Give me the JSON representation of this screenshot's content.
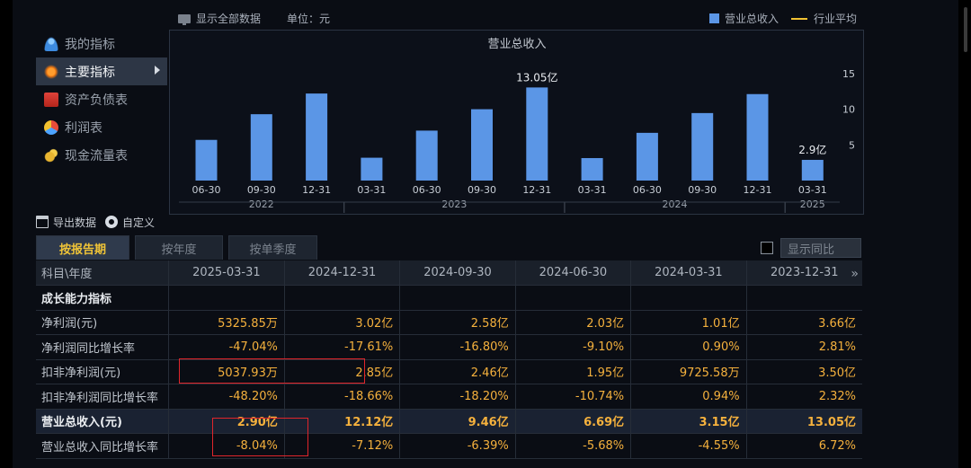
{
  "topbar": {
    "show_all": "显示全部数据",
    "unit": "单位：元",
    "legend_revenue": "营业总收入",
    "legend_industry": "行业平均",
    "colors": {
      "bar": "#5b96e6",
      "industry_line": "#f1c232"
    }
  },
  "sidebar": {
    "items": [
      {
        "label": "我的指标",
        "icon": "user-icon"
      },
      {
        "label": "主要指标",
        "icon": "gear-icon",
        "active": true
      },
      {
        "label": "资产负债表",
        "icon": "document-icon"
      },
      {
        "label": "利润表",
        "icon": "pie-icon"
      },
      {
        "label": "现金流量表",
        "icon": "coins-icon"
      }
    ]
  },
  "chart_data": {
    "type": "bar",
    "title": "营业总收入",
    "categories": [
      "06-30",
      "09-30",
      "12-31",
      "03-31",
      "06-30",
      "09-30",
      "12-31",
      "03-31",
      "06-30",
      "09-30",
      "12-31",
      "03-31"
    ],
    "year_groups": [
      {
        "label": "2022",
        "count": 3
      },
      {
        "label": "2023",
        "count": 4
      },
      {
        "label": "2024",
        "count": 4
      },
      {
        "label": "2025",
        "count": 1
      }
    ],
    "values": [
      5.7,
      9.3,
      12.2,
      3.2,
      7.0,
      10.0,
      13.05,
      3.15,
      6.69,
      9.46,
      12.12,
      2.9
    ],
    "data_labels": [
      {
        "index": 6,
        "text": "13.05亿"
      },
      {
        "index": 11,
        "text": "2.9亿"
      }
    ],
    "yticks": [
      "5",
      "10",
      "15"
    ],
    "ylim": [
      0,
      17
    ]
  },
  "tools": {
    "export": "导出数据",
    "customize": "自定义"
  },
  "tabs": [
    "按报告期",
    "按年度",
    "按单季度"
  ],
  "yoy": {
    "label": "显示同比"
  },
  "table": {
    "header": [
      "科目\\年度",
      "2025-03-31",
      "2024-12-31",
      "2024-09-30",
      "2024-06-30",
      "2024-03-31",
      "2023-12-31"
    ],
    "section": "成长能力指标",
    "rows": [
      {
        "label": "净利润(元)",
        "values": [
          "5325.85万",
          "3.02亿",
          "2.58亿",
          "2.03亿",
          "1.01亿",
          "3.66亿"
        ]
      },
      {
        "label": "净利润同比增长率",
        "values": [
          "-47.04%",
          "-17.61%",
          "-16.80%",
          "-9.10%",
          "0.90%",
          "2.81%"
        ]
      },
      {
        "label": "扣非净利润(元)",
        "values": [
          "5037.93万",
          "2.85亿",
          "2.46亿",
          "1.95亿",
          "9725.58万",
          "3.50亿"
        ]
      },
      {
        "label": "扣非净利润同比增长率",
        "values": [
          "-48.20%",
          "-18.66%",
          "-18.20%",
          "-10.74%",
          "0.94%",
          "2.32%"
        ]
      },
      {
        "label": "营业总收入(元)",
        "values": [
          "2.90亿",
          "12.12亿",
          "9.46亿",
          "6.69亿",
          "3.15亿",
          "13.05亿"
        ],
        "highlight": true
      },
      {
        "label": "营业总收入同比增长率",
        "values": [
          "-8.04%",
          "-7.12%",
          "-6.39%",
          "-5.68%",
          "-4.55%",
          "6.72%"
        ]
      }
    ]
  }
}
